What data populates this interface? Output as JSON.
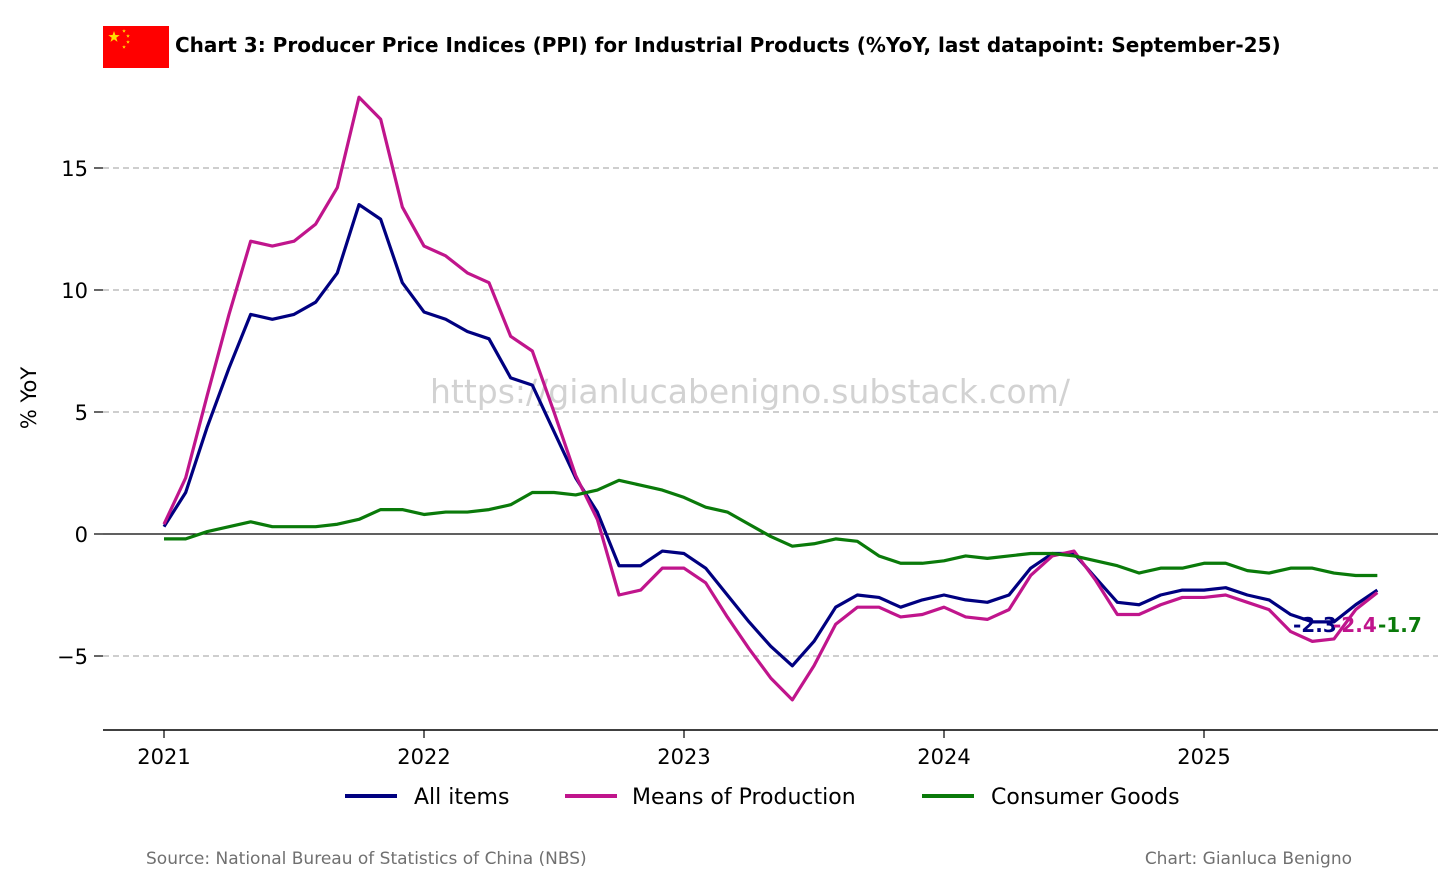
{
  "chart_data": {
    "type": "line",
    "title": "Chart 3: Producer Price Indices (PPI) for Industrial Products (%YoY, last datapoint: September-25)",
    "ylabel": "% YoY",
    "xlabel": "",
    "ylim": [
      -8,
      18
    ],
    "yticks": [
      -5,
      0,
      5,
      10,
      15
    ],
    "ytick_labels": [
      "−5",
      "0",
      "5",
      "10",
      "15"
    ],
    "xticks": [
      "2021",
      "2022",
      "2023",
      "2024",
      "2025"
    ],
    "grid": "horizontal dashed",
    "legend_position": "bottom",
    "x": [
      "2021-01",
      "2021-02",
      "2021-03",
      "2021-04",
      "2021-05",
      "2021-06",
      "2021-07",
      "2021-08",
      "2021-09",
      "2021-10",
      "2021-11",
      "2021-12",
      "2022-01",
      "2022-02",
      "2022-03",
      "2022-04",
      "2022-05",
      "2022-06",
      "2022-07",
      "2022-08",
      "2022-09",
      "2022-10",
      "2022-11",
      "2022-12",
      "2023-01",
      "2023-02",
      "2023-03",
      "2023-04",
      "2023-05",
      "2023-06",
      "2023-07",
      "2023-08",
      "2023-09",
      "2023-10",
      "2023-11",
      "2023-12",
      "2024-01",
      "2024-02",
      "2024-03",
      "2024-04",
      "2024-05",
      "2024-06",
      "2024-07",
      "2024-08",
      "2024-09",
      "2024-10",
      "2024-11",
      "2024-12",
      "2025-01",
      "2025-02",
      "2025-03",
      "2025-04",
      "2025-05",
      "2025-06",
      "2025-07",
      "2025-08",
      "2025-09"
    ],
    "series": [
      {
        "name": "All items",
        "color": "#000080",
        "values": [
          0.3,
          1.7,
          4.4,
          6.8,
          9.0,
          8.8,
          9.0,
          9.5,
          10.7,
          13.5,
          12.9,
          10.3,
          9.1,
          8.8,
          8.3,
          8.0,
          6.4,
          6.1,
          4.2,
          2.3,
          0.9,
          -1.3,
          -1.3,
          -0.7,
          -0.8,
          -1.4,
          -2.5,
          -3.6,
          -4.6,
          -5.4,
          -4.4,
          -3.0,
          -2.5,
          -2.6,
          -3.0,
          -2.7,
          -2.5,
          -2.7,
          -2.8,
          -2.5,
          -1.4,
          -0.8,
          -0.8,
          -1.8,
          -2.8,
          -2.9,
          -2.5,
          -2.3,
          -2.3,
          -2.2,
          -2.5,
          -2.7,
          -3.3,
          -3.6,
          -3.6,
          -2.9,
          -2.3
        ]
      },
      {
        "name": "Means of Production",
        "color": "#c0158c",
        "values": [
          0.4,
          2.3,
          5.7,
          9.0,
          12.0,
          11.8,
          12.0,
          12.7,
          14.2,
          17.9,
          17.0,
          13.4,
          11.8,
          11.4,
          10.7,
          10.3,
          8.1,
          7.5,
          5.0,
          2.4,
          0.6,
          -2.5,
          -2.3,
          -1.4,
          -1.4,
          -2.0,
          -3.4,
          -4.7,
          -5.9,
          -6.8,
          -5.4,
          -3.7,
          -3.0,
          -3.0,
          -3.4,
          -3.3,
          -3.0,
          -3.4,
          -3.5,
          -3.1,
          -1.7,
          -0.9,
          -0.7,
          -1.9,
          -3.3,
          -3.3,
          -2.9,
          -2.6,
          -2.6,
          -2.5,
          -2.8,
          -3.1,
          -4.0,
          -4.4,
          -4.3,
          -3.1,
          -2.4
        ]
      },
      {
        "name": "Consumer Goods",
        "color": "#0a7a0a",
        "values": [
          -0.2,
          -0.2,
          0.1,
          0.3,
          0.5,
          0.3,
          0.3,
          0.3,
          0.4,
          0.6,
          1.0,
          1.0,
          0.8,
          0.9,
          0.9,
          1.0,
          1.2,
          1.7,
          1.7,
          1.6,
          1.8,
          2.2,
          2.0,
          1.8,
          1.5,
          1.1,
          0.9,
          0.4,
          -0.1,
          -0.5,
          -0.4,
          -0.2,
          -0.3,
          -0.9,
          -1.2,
          -1.2,
          -1.1,
          -0.9,
          -1.0,
          -0.9,
          -0.8,
          -0.8,
          -0.9,
          -1.1,
          -1.3,
          -1.6,
          -1.4,
          -1.4,
          -1.2,
          -1.2,
          -1.5,
          -1.6,
          -1.4,
          -1.4,
          -1.6,
          -1.7,
          -1.7
        ]
      }
    ],
    "end_labels": [
      {
        "series": "All items",
        "text": "-2.3",
        "color": "#000080"
      },
      {
        "series": "Means of Production",
        "text": "-2.4",
        "color": "#c0158c"
      },
      {
        "series": "Consumer Goods",
        "text": "-1.7",
        "color": "#0a7a0a"
      }
    ],
    "annotations": {
      "watermark": "https://gianlucabenigno.substack.com/",
      "source": "Source: National Bureau of Statistics of China (NBS)",
      "credit": "Chart: Gianluca Benigno"
    },
    "flag_icon": "china-flag-icon",
    "flag_colors": {
      "field": "#ff0000",
      "stars": "#ffde00"
    }
  }
}
